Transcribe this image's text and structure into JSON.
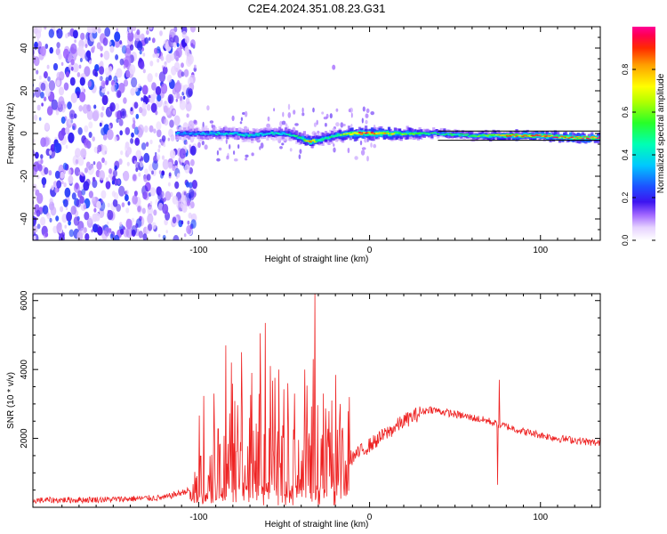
{
  "title": "C2E4.2024.351.08.23.G31",
  "colors": {
    "snr_line": "#ee2222",
    "background": "#ffffff",
    "noise_purple": "#5a1bdc"
  },
  "chart_data": [
    {
      "type": "heatmap",
      "name": "spectrogram",
      "xlabel": "Height of straight line (km)",
      "ylabel": "Frequency (Hz)",
      "xlim": [
        -197,
        135
      ],
      "ylim": [
        -50,
        50
      ],
      "x_ticks": [
        -100,
        0,
        100
      ],
      "x_tick_labels": [
        "-100",
        "0",
        "100"
      ],
      "y_ticks": [
        -40,
        -20,
        0,
        20,
        40
      ],
      "y_tick_labels": [
        "-40",
        "-20",
        "0",
        "20",
        "40"
      ],
      "colorbar": {
        "label": "Normalized spectral amplitude",
        "range": [
          0,
          1
        ],
        "ticks": [
          0.0,
          0.2,
          0.4,
          0.6,
          0.8
        ],
        "tick_labels": [
          "0.0",
          "0.2",
          "0.4",
          "0.6",
          "0.8"
        ]
      },
      "signal_track": {
        "x": [
          -113,
          -100,
          -90,
          -80,
          -70,
          -60,
          -50,
          -40,
          -35,
          -30,
          -20,
          -10,
          0,
          10,
          20,
          40,
          60,
          80,
          100,
          120,
          135
        ],
        "freq_hz": [
          0,
          0,
          0,
          0,
          -1,
          0,
          0,
          -2,
          -4,
          -3,
          -1,
          0,
          0,
          0,
          0,
          0,
          -1,
          -1,
          -1,
          -2,
          -2
        ],
        "peak_amplitude": [
          0.35,
          0.4,
          0.45,
          0.45,
          0.45,
          0.45,
          0.45,
          0.55,
          0.85,
          0.6,
          0.5,
          0.9,
          0.95,
          0.85,
          0.6,
          0.55,
          0.6,
          0.9,
          0.95,
          0.95,
          0.95
        ]
      },
      "noise_region_x": [
        -197,
        -107
      ]
    },
    {
      "type": "line",
      "name": "snr",
      "xlabel": "Height of straight line (km)",
      "ylabel": "SNR (10 * v/v)",
      "xlim": [
        -197,
        135
      ],
      "ylim": [
        0,
        6200
      ],
      "x_ticks": [
        -100,
        0,
        100
      ],
      "x_tick_labels": [
        "-100",
        "0",
        "100"
      ],
      "y_ticks": [
        2000,
        4000,
        6000
      ],
      "y_tick_labels": [
        "2000",
        "4000",
        "6000"
      ],
      "envelope": {
        "x": [
          -197,
          -150,
          -120,
          -105,
          -100,
          -95,
          -90,
          -85,
          -80,
          -70,
          -60,
          -50,
          -40,
          -30,
          -20,
          -10,
          0,
          10,
          20,
          30,
          35,
          40,
          50,
          60,
          70,
          75,
          80,
          90,
          100,
          110,
          120,
          135
        ],
        "baseline": [
          200,
          230,
          280,
          500,
          650,
          900,
          1200,
          1350,
          1250,
          1200,
          1200,
          1150,
          1050,
          1200,
          1350,
          1450,
          1800,
          2150,
          2500,
          2750,
          2850,
          2800,
          2700,
          2600,
          2500,
          2400,
          2350,
          2200,
          2100,
          2000,
          1950,
          1850
        ]
      },
      "spikes": [
        {
          "x": -91,
          "y": 3300
        },
        {
          "x": -84,
          "y": 4700
        },
        {
          "x": -81,
          "y": 4200
        },
        {
          "x": -75,
          "y": 4500
        },
        {
          "x": -69,
          "y": 3900
        },
        {
          "x": -64,
          "y": 5050
        },
        {
          "x": -61,
          "y": 5350
        },
        {
          "x": -58,
          "y": 4100
        },
        {
          "x": -53,
          "y": 4000
        },
        {
          "x": -48,
          "y": 3600
        },
        {
          "x": -44,
          "y": 3300
        },
        {
          "x": -38,
          "y": 4000
        },
        {
          "x": -33,
          "y": 4300
        },
        {
          "x": -32,
          "y": 6200
        },
        {
          "x": -27,
          "y": 3300
        },
        {
          "x": -22,
          "y": 3100
        },
        {
          "x": -17,
          "y": 3000
        },
        {
          "x": -12,
          "y": 3200
        }
      ],
      "dip": {
        "x": 75,
        "y": 650
      },
      "peak_after_dip": {
        "x": 76,
        "y": 3700
      }
    }
  ]
}
